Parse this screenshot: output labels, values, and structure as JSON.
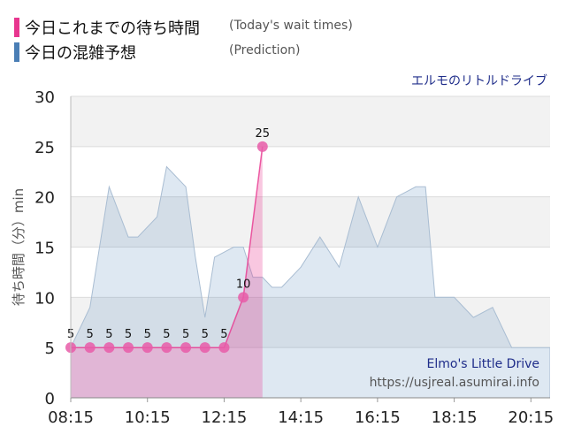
{
  "legend": {
    "actual_label": "今日これまでの待ち時間",
    "actual_sub": "(Today's wait times)",
    "prediction_label": "今日の混雑予想",
    "prediction_sub": "(Prediction)",
    "actual_color": "#e8368f",
    "prediction_color": "#4a7eb5"
  },
  "attraction_name": "エルモのリトルドライブ",
  "watermark": {
    "name": "Elmo's Little Drive",
    "url": "https://usjreal.asumirai.info"
  },
  "chart_data": {
    "type": "area",
    "xlabel": "",
    "ylabel": "待ち時間（分）min",
    "ylim": [
      0,
      30
    ],
    "yticks": [
      0,
      5,
      10,
      15,
      20,
      25,
      30
    ],
    "x_tick_labels": [
      "08:15",
      "10:15",
      "12:15",
      "14:15",
      "16:15",
      "18:15",
      "20:15"
    ],
    "x_range": [
      "08:15",
      "20:45"
    ],
    "grid": true,
    "series": [
      {
        "name": "今日の混雑予想",
        "color": "#4a7eb5",
        "x": [
          "08:15",
          "08:45",
          "09:15",
          "09:45",
          "10:00",
          "10:30",
          "10:45",
          "11:15",
          "11:30",
          "11:45",
          "12:00",
          "12:30",
          "12:45",
          "13:00",
          "13:15",
          "13:30",
          "13:45",
          "14:15",
          "14:45",
          "15:15",
          "15:45",
          "16:15",
          "16:45",
          "17:15",
          "17:30",
          "17:45",
          "18:00",
          "18:15",
          "18:45",
          "19:15",
          "19:45",
          "20:00",
          "20:15",
          "20:45"
        ],
        "values": [
          5,
          9,
          21,
          16,
          16,
          18,
          23,
          21,
          14,
          8,
          14,
          15,
          15,
          12,
          12,
          11,
          11,
          13,
          16,
          13,
          20,
          15,
          20,
          21,
          21,
          10,
          10,
          10,
          8,
          9,
          5,
          5,
          5,
          5
        ]
      },
      {
        "name": "今日これまでの待ち時間",
        "color": "#e8368f",
        "x": [
          "08:15",
          "08:45",
          "09:15",
          "09:45",
          "10:15",
          "10:45",
          "11:15",
          "11:45",
          "12:15",
          "12:45",
          "13:15"
        ],
        "values": [
          5,
          5,
          5,
          5,
          5,
          5,
          5,
          5,
          5,
          10,
          25
        ]
      }
    ]
  }
}
